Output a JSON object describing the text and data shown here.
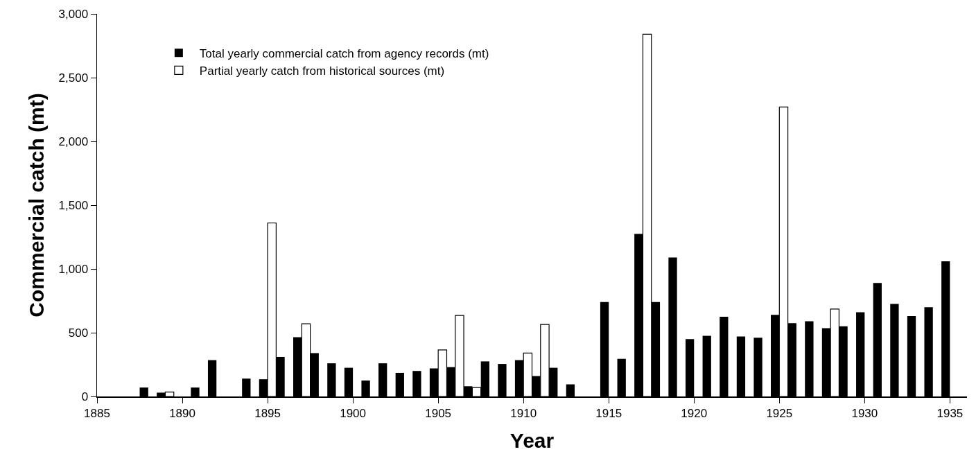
{
  "chart_data": {
    "type": "bar",
    "xlabel": "Year",
    "ylabel": "Commercial catch (mt)",
    "x": [
      1888,
      1889,
      1890,
      1891,
      1892,
      1893,
      1894,
      1895,
      1896,
      1897,
      1898,
      1899,
      1900,
      1901,
      1902,
      1903,
      1904,
      1905,
      1906,
      1907,
      1908,
      1909,
      1910,
      1911,
      1912,
      1913,
      1914,
      1915,
      1916,
      1917,
      1918,
      1919,
      1920,
      1921,
      1922,
      1923,
      1924,
      1925,
      1926,
      1927,
      1928,
      1929,
      1930,
      1931,
      1932,
      1933,
      1934,
      1935
    ],
    "series": [
      {
        "name": "Total yearly commercial catch from agency records (mt)",
        "color": "#000000",
        "values": [
          70,
          30,
          null,
          70,
          285,
          null,
          140,
          135,
          310,
          465,
          340,
          260,
          225,
          125,
          260,
          185,
          200,
          220,
          230,
          80,
          275,
          255,
          285,
          160,
          225,
          95,
          null,
          740,
          295,
          1275,
          740,
          1090,
          450,
          475,
          625,
          470,
          460,
          640,
          575,
          590,
          535,
          550,
          660,
          890,
          725,
          630,
          700,
          1060
        ]
      },
      {
        "name": "Partial yearly catch from historical sources (mt)",
        "color": "#ffffff",
        "values": [
          null,
          35,
          null,
          null,
          null,
          null,
          null,
          1360,
          null,
          570,
          null,
          null,
          null,
          null,
          null,
          null,
          null,
          365,
          635,
          70,
          null,
          null,
          340,
          565,
          null,
          null,
          null,
          null,
          null,
          2840,
          null,
          null,
          null,
          null,
          null,
          null,
          null,
          2270,
          null,
          null,
          685,
          null,
          null,
          null,
          null,
          null,
          null,
          null
        ]
      }
    ],
    "xlim": [
      1885,
      1936
    ],
    "xticks": [
      1885,
      1890,
      1895,
      1900,
      1905,
      1910,
      1915,
      1920,
      1925,
      1930,
      1935
    ],
    "ylim": [
      0,
      3000
    ],
    "yticks": [
      0,
      500,
      {
        "value": 1000,
        "label": "1,000"
      },
      {
        "value": 1500,
        "label": "1,500"
      },
      {
        "value": 2000,
        "label": "2,000"
      },
      {
        "value": 2500,
        "label": "2,500"
      },
      {
        "value": 3000,
        "label": "3,000"
      }
    ],
    "legend": "top left"
  }
}
